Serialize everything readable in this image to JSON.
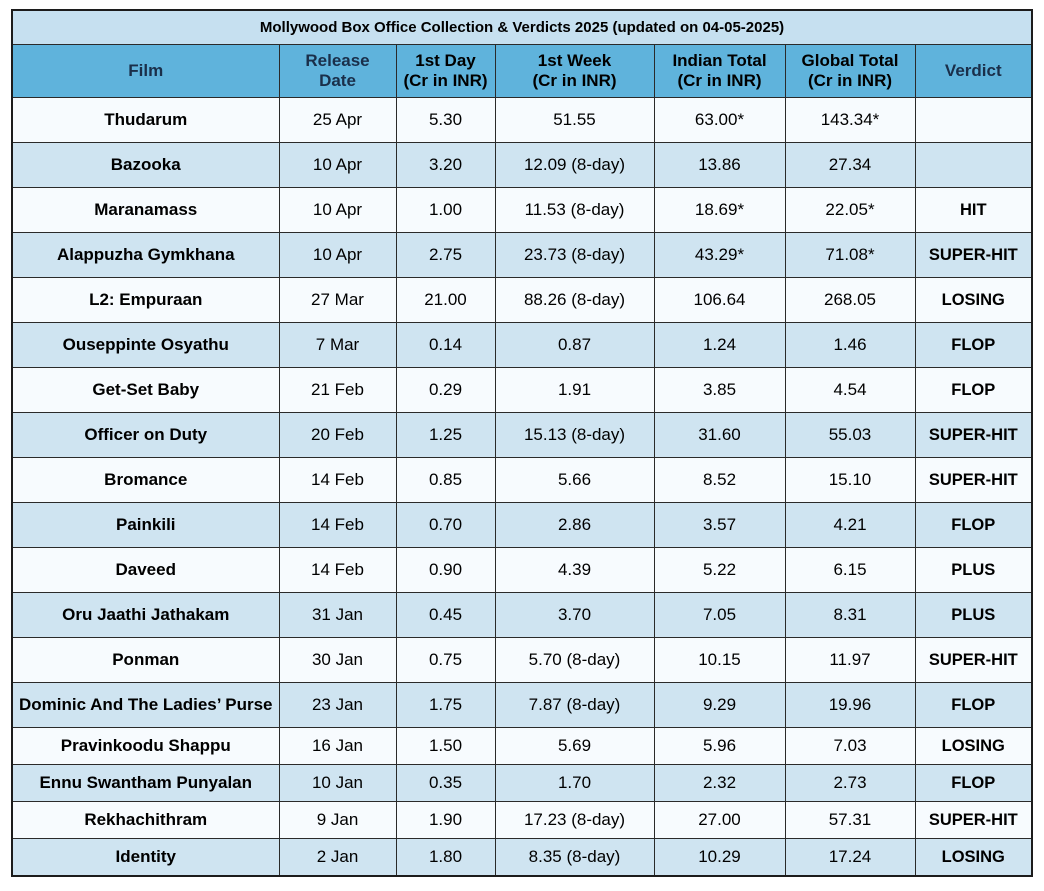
{
  "title": "Mollywood Box Office Collection & Verdicts 2025 (updated on 04-05-2025)",
  "columns": {
    "film": "Film",
    "release_l1": "Release",
    "release_l2": "Date",
    "day1_l1": "1st Day",
    "day1_l2": "(Cr in INR)",
    "week1_l1": "1st Week",
    "week1_l2": "(Cr in INR)",
    "india_l1": "Indian Total",
    "india_l2": "(Cr in INR)",
    "global_l1": "Global Total",
    "global_l2": "(Cr in INR)",
    "verdict": "Verdict"
  },
  "rows": [
    {
      "film": "Thudarum",
      "release": "25 Apr",
      "day1": "5.30",
      "week1": "51.55",
      "india": "63.00*",
      "global": "143.34*",
      "verdict": ""
    },
    {
      "film": "Bazooka",
      "release": "10 Apr",
      "day1": "3.20",
      "week1": "12.09 (8-day)",
      "india": "13.86",
      "global": "27.34",
      "verdict": ""
    },
    {
      "film": "Maranamass",
      "release": "10 Apr",
      "day1": "1.00",
      "week1": "11.53 (8-day)",
      "india": "18.69*",
      "global": "22.05*",
      "verdict": "HIT"
    },
    {
      "film": "Alappuzha Gymkhana",
      "release": "10 Apr",
      "day1": "2.75",
      "week1": "23.73 (8-day)",
      "india": "43.29*",
      "global": "71.08*",
      "verdict": "SUPER-HIT"
    },
    {
      "film": "L2: Empuraan",
      "release": "27 Mar",
      "day1": "21.00",
      "week1": "88.26 (8-day)",
      "india": "106.64",
      "global": "268.05",
      "verdict": "LOSING"
    },
    {
      "film": "Ouseppinte Osyathu",
      "release": "7 Mar",
      "day1": "0.14",
      "week1": "0.87",
      "india": "1.24",
      "global": "1.46",
      "verdict": "FLOP"
    },
    {
      "film": "Get-Set Baby",
      "release": "21 Feb",
      "day1": "0.29",
      "week1": "1.91",
      "india": "3.85",
      "global": "4.54",
      "verdict": "FLOP"
    },
    {
      "film": "Officer on Duty",
      "release": "20 Feb",
      "day1": "1.25",
      "week1": "15.13 (8-day)",
      "india": "31.60",
      "global": "55.03",
      "verdict": "SUPER-HIT"
    },
    {
      "film": "Bromance",
      "release": "14 Feb",
      "day1": "0.85",
      "week1": "5.66",
      "india": "8.52",
      "global": "15.10",
      "verdict": "SUPER-HIT"
    },
    {
      "film": "Painkili",
      "release": "14 Feb",
      "day1": "0.70",
      "week1": "2.86",
      "india": "3.57",
      "global": "4.21",
      "verdict": "FLOP"
    },
    {
      "film": "Daveed",
      "release": "14 Feb",
      "day1": "0.90",
      "week1": "4.39",
      "india": "5.22",
      "global": "6.15",
      "verdict": "PLUS"
    },
    {
      "film": "Oru Jaathi Jathakam",
      "release": "31 Jan",
      "day1": "0.45",
      "week1": "3.70",
      "india": "7.05",
      "global": "8.31",
      "verdict": "PLUS"
    },
    {
      "film": "Ponman",
      "release": "30 Jan",
      "day1": "0.75",
      "week1": "5.70 (8-day)",
      "india": "10.15",
      "global": "11.97",
      "verdict": "SUPER-HIT"
    },
    {
      "film": "Dominic And The Ladies’ Purse",
      "release": "23 Jan",
      "day1": "1.75",
      "week1": "7.87 (8-day)",
      "india": "9.29",
      "global": "19.96",
      "verdict": "FLOP"
    },
    {
      "film": "Pravinkoodu Shappu",
      "release": "16 Jan",
      "day1": "1.50",
      "week1": "5.69",
      "india": "5.96",
      "global": "7.03",
      "verdict": "LOSING"
    },
    {
      "film": "Ennu  Swantham Punyalan",
      "release": "10 Jan",
      "day1": "0.35",
      "week1": "1.70",
      "india": "2.32",
      "global": "2.73",
      "verdict": "FLOP"
    },
    {
      "film": "Rekhachithram",
      "release": "9 Jan",
      "day1": "1.90",
      "week1": "17.23 (8-day)",
      "india": "27.00",
      "global": "57.31",
      "verdict": "SUPER-HIT"
    },
    {
      "film": "Identity",
      "release": "2 Jan",
      "day1": "1.80",
      "week1": "8.35 (8-day)",
      "india": "10.29",
      "global": "17.24",
      "verdict": "LOSING"
    }
  ]
}
